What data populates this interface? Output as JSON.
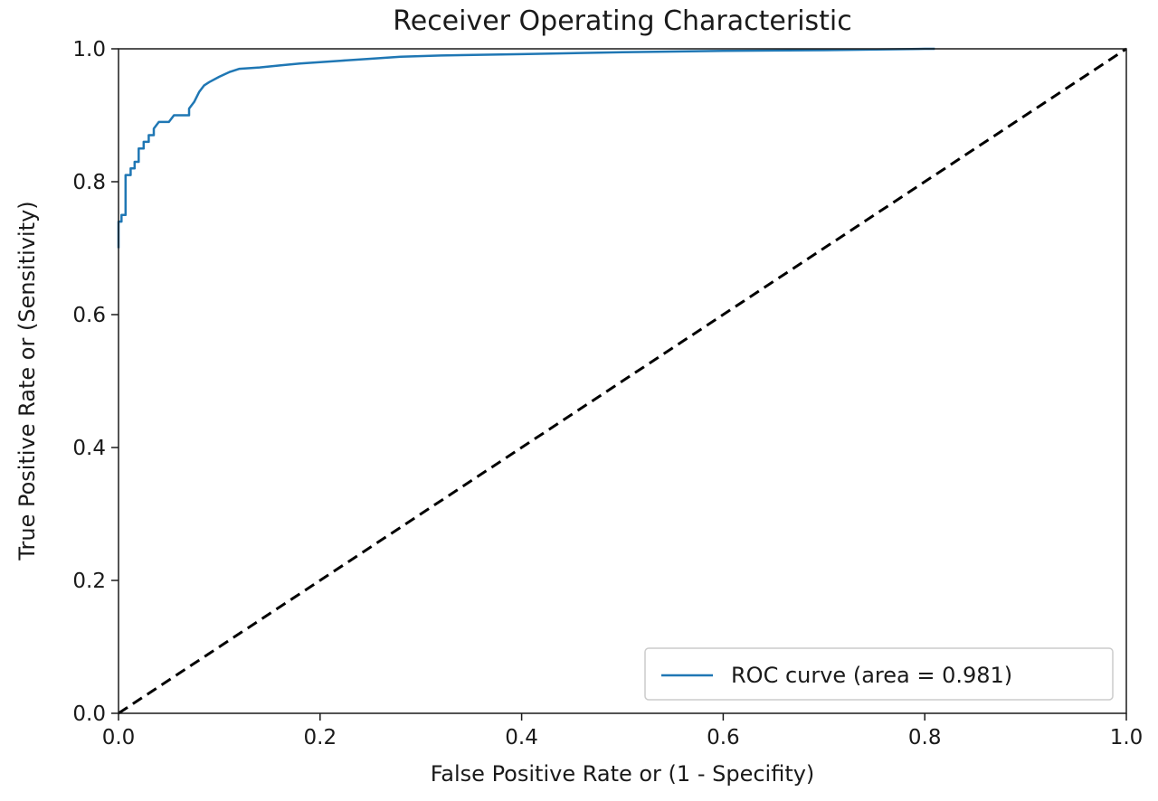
{
  "chart_data": {
    "type": "line",
    "title": "Receiver Operating Characteristic",
    "xlabel": "False Positive Rate or (1 - Specifity)",
    "ylabel": "True Positive Rate or (Sensitivity)",
    "xlim": [
      0.0,
      1.0
    ],
    "ylim": [
      0.0,
      1.0
    ],
    "xticks": [
      "0.0",
      "0.2",
      "0.4",
      "0.6",
      "0.8",
      "1.0"
    ],
    "yticks": [
      "0.0",
      "0.2",
      "0.4",
      "0.6",
      "0.8",
      "1.0"
    ],
    "grid": false,
    "legend_position": "bottom-right",
    "series": [
      {
        "name": "ROC curve (area = 0.981)",
        "color": "#1f77b4",
        "style": "solid",
        "x": [
          0.0,
          0.0,
          0.003,
          0.003,
          0.007,
          0.007,
          0.012,
          0.012,
          0.016,
          0.016,
          0.02,
          0.02,
          0.025,
          0.025,
          0.03,
          0.03,
          0.035,
          0.035,
          0.04,
          0.045,
          0.05,
          0.055,
          0.06,
          0.065,
          0.07,
          0.07,
          0.075,
          0.08,
          0.085,
          0.09,
          0.1,
          0.11,
          0.12,
          0.14,
          0.16,
          0.18,
          0.2,
          0.22,
          0.25,
          0.28,
          0.32,
          0.4,
          0.5,
          0.6,
          0.7,
          0.8,
          0.81
        ],
        "y": [
          0.7,
          0.74,
          0.74,
          0.75,
          0.75,
          0.81,
          0.81,
          0.82,
          0.82,
          0.83,
          0.83,
          0.85,
          0.85,
          0.86,
          0.86,
          0.87,
          0.87,
          0.88,
          0.89,
          0.89,
          0.89,
          0.9,
          0.9,
          0.9,
          0.9,
          0.91,
          0.92,
          0.935,
          0.945,
          0.95,
          0.958,
          0.965,
          0.97,
          0.972,
          0.975,
          0.978,
          0.98,
          0.982,
          0.985,
          0.988,
          0.99,
          0.992,
          0.995,
          0.997,
          0.998,
          1.0,
          1.0
        ]
      },
      {
        "name": "",
        "color": "#000000",
        "style": "dashed",
        "x": [
          0.0,
          1.0
        ],
        "y": [
          0.0,
          1.0
        ]
      }
    ]
  }
}
